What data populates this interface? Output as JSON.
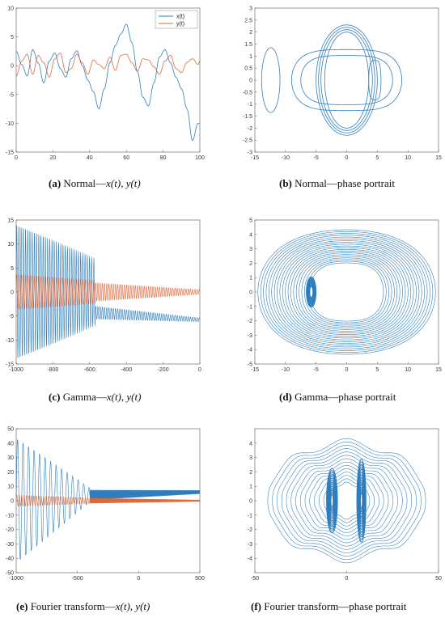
{
  "colors": {
    "x_series": "#2e7ebf",
    "y_series": "#e0693a",
    "axis": "#555555"
  },
  "captions": [
    {
      "id": "a",
      "tag": "(a)",
      "text": "Normal—",
      "var1": "x(t)",
      "sep": ", ",
      "var2": "y(t)"
    },
    {
      "id": "b",
      "tag": "(b)",
      "text": "Normal—phase portrait"
    },
    {
      "id": "c",
      "tag": "(c)",
      "text": "Gamma—",
      "var1": "x(t)",
      "sep": ", ",
      "var2": "y(t)"
    },
    {
      "id": "d",
      "tag": "(d)",
      "text": "Gamma—phase portrait"
    },
    {
      "id": "e",
      "tag": "(e)",
      "text": "Fourier transform—",
      "var1": "x(t)",
      "sep": ", ",
      "var2": "y(t)"
    },
    {
      "id": "f",
      "tag": "(f)",
      "text": "Fourier transform—phase portrait"
    }
  ],
  "chart_data": [
    {
      "id": "a",
      "type": "line",
      "xlim": [
        0,
        100
      ],
      "ylim": [
        -15,
        10
      ],
      "xticks": [
        0,
        20,
        40,
        60,
        80,
        100
      ],
      "yticks": [
        -15,
        -10,
        -5,
        0,
        5,
        10
      ],
      "legend": {
        "placement": "top-right",
        "entries": [
          "x(t)",
          "y(t)"
        ]
      },
      "series": [
        {
          "name": "x(t)",
          "color_key": "x_series",
          "x": [
            0,
            3,
            6,
            9,
            12,
            15,
            18,
            21,
            24,
            27,
            30,
            33,
            36,
            39,
            42,
            45,
            48,
            51,
            54,
            57,
            60,
            63,
            66,
            69,
            72,
            75,
            78,
            81,
            84,
            87,
            90,
            93,
            96,
            99,
            100
          ],
          "y": [
            2.5,
            0.2,
            -1.8,
            2.8,
            0.5,
            -3.0,
            0.8,
            2.2,
            -0.5,
            -2.0,
            1.2,
            2.6,
            0.0,
            -2.5,
            -4.5,
            -7.5,
            -4.0,
            0.5,
            3.5,
            5.5,
            7.2,
            4.0,
            -1.0,
            -5.5,
            -7.0,
            -3.0,
            1.5,
            2.8,
            0.5,
            -2.0,
            -4.0,
            -7.5,
            -13.0,
            -10.0,
            -10.0
          ]
        },
        {
          "name": "y(t)",
          "color_key": "y_series",
          "x": [
            0,
            3,
            6,
            9,
            12,
            15,
            18,
            21,
            24,
            27,
            30,
            33,
            36,
            39,
            42,
            45,
            48,
            51,
            54,
            57,
            60,
            63,
            66,
            69,
            72,
            75,
            78,
            81,
            84,
            87,
            90,
            93,
            96,
            99,
            100
          ],
          "y": [
            -1.8,
            0.8,
            2.0,
            -1.5,
            1.8,
            0.5,
            -2.0,
            1.2,
            2.2,
            -1.2,
            -0.5,
            2.0,
            0.5,
            -1.5,
            1.0,
            0.2,
            -0.5,
            1.5,
            -0.8,
            1.8,
            2.0,
            0.5,
            -1.0,
            1.2,
            1.0,
            -0.2,
            -1.5,
            0.8,
            1.8,
            -0.5,
            -1.2,
            0.6,
            1.2,
            0.2,
            0.8
          ]
        }
      ]
    },
    {
      "id": "b",
      "type": "line",
      "xlim": [
        -15,
        15
      ],
      "ylim": [
        -3,
        3
      ],
      "xticks": [
        -15,
        -10,
        -5,
        0,
        5,
        10,
        15
      ],
      "yticks": [
        -3,
        -2.5,
        -2,
        -1.5,
        -1,
        -0.5,
        0,
        0.5,
        1,
        1.5,
        2,
        2.5,
        3
      ],
      "curves": [
        {
          "cx": -12.4,
          "cy": 0,
          "rx": 1.5,
          "ry": 1.35
        },
        {
          "cx": 0,
          "cy": 0,
          "rx": 3.6,
          "ry": 2.0
        },
        {
          "cx": 0,
          "cy": 0,
          "rx": 4.2,
          "ry": 2.1
        },
        {
          "cx": 0,
          "cy": 0,
          "rx": 4.6,
          "ry": 2.2
        },
        {
          "cx": 0,
          "cy": 0,
          "rx": 5.0,
          "ry": 2.3
        },
        {
          "cx": 0,
          "cy": 0,
          "rx": 7.5,
          "ry": 1.25
        },
        {
          "cx": 0,
          "cy": 0,
          "rx": 9.0,
          "ry": 1.55
        },
        {
          "cx": 4.6,
          "cy": 0,
          "rx": 1.0,
          "ry": 1.0
        }
      ]
    },
    {
      "id": "c",
      "type": "line",
      "xlim": [
        -1000,
        0
      ],
      "ylim": [
        -15,
        15
      ],
      "xticks": [
        -1000,
        -800,
        -600,
        -400,
        -200,
        0
      ],
      "yticks": [
        -15,
        -10,
        -5,
        0,
        5,
        10,
        15
      ],
      "series": [
        {
          "name": "x(t)",
          "color_key": "x_series",
          "segments": [
            {
              "x0": -1000,
              "x1": -570,
              "amp0": 14.5,
              "amp1": 7.0,
              "mean": 0,
              "period": 12
            },
            {
              "x0": -570,
              "x1": 0,
              "amp0": 1.4,
              "amp1": 0.4,
              "mean0": -4.3,
              "mean1": -5.8,
              "period": 12
            }
          ]
        },
        {
          "name": "y(t)",
          "color_key": "y_series",
          "segments": [
            {
              "x0": -1000,
              "x1": -570,
              "amp0": 3.8,
              "amp1": 2.4,
              "mean": 0,
              "period": 12
            },
            {
              "x0": -570,
              "x1": 0,
              "amp0": 2.0,
              "amp1": 0.5,
              "mean": 0,
              "period": 12
            }
          ]
        }
      ]
    },
    {
      "id": "d",
      "type": "line",
      "xlim": [
        -15,
        15
      ],
      "ylim": [
        -5,
        5
      ],
      "xticks": [
        -15,
        -10,
        -5,
        0,
        5,
        10,
        15
      ],
      "yticks": [
        -5,
        -4,
        -3,
        -2,
        -1,
        0,
        1,
        2,
        3,
        4,
        5
      ],
      "spiral": {
        "cx": -5.8,
        "cy": 0,
        "rx": 0.8,
        "ry": 0.75
      },
      "orbit": {
        "rx_min": 6,
        "rx_max": 14.5,
        "ry_min": 2.3,
        "ry_max": 4.6,
        "count": 20
      }
    },
    {
      "id": "e",
      "type": "line",
      "xlim": [
        -1000,
        500
      ],
      "ylim": [
        -50,
        50
      ],
      "xticks": [
        -1000,
        -500,
        0,
        500
      ],
      "yticks": [
        -50,
        -40,
        -30,
        -20,
        -10,
        0,
        10,
        20,
        30,
        40,
        50
      ],
      "series": [
        {
          "name": "x(t)",
          "color_key": "x_series",
          "segments": [
            {
              "x0": -1000,
              "x1": -400,
              "amp0": 45,
              "amp1": 5,
              "mean0": 0,
              "mean1": 4,
              "period": 45
            },
            {
              "x0": -400,
              "x1": 500,
              "amp0": 3.5,
              "amp1": 1.2,
              "mean0": 4,
              "mean1": 6,
              "period": 5
            }
          ]
        },
        {
          "name": "y(t)",
          "color_key": "y_series",
          "segments": [
            {
              "x0": -1000,
              "x1": -400,
              "amp0": 4,
              "amp1": 2,
              "mean": 0,
              "period": 20
            },
            {
              "x0": -400,
              "x1": 500,
              "amp0": 1.8,
              "amp1": 0.5,
              "mean": 0,
              "period": 5
            }
          ]
        }
      ]
    },
    {
      "id": "f",
      "type": "line",
      "xlim": [
        -50,
        50
      ],
      "ylim": [
        -5,
        5
      ],
      "xticks": [
        -50,
        0,
        50
      ],
      "yticks": [
        -4,
        -3,
        -2,
        -1,
        0,
        1,
        2,
        3,
        4
      ],
      "spirals": [
        {
          "cx": 8,
          "cy": 0,
          "rx": 2.5,
          "ry": 1.8
        },
        {
          "cx": -8,
          "cy": 0,
          "rx": 3.0,
          "ry": 1.4
        }
      ],
      "orbit": {
        "rx_min": 10,
        "rx_max": 43,
        "ry_min": 1.2,
        "ry_max": 4.0,
        "count": 14
      }
    }
  ]
}
